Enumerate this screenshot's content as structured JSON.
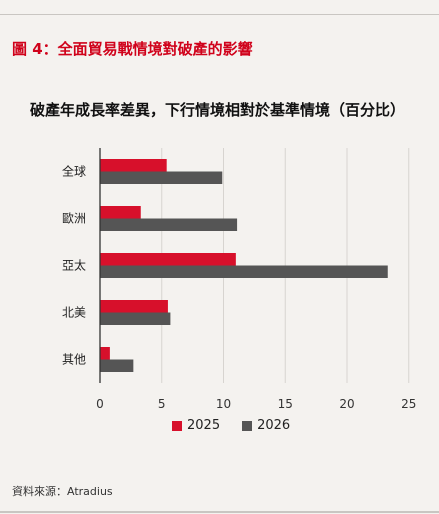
{
  "figure": {
    "title": "圖 4：全面貿易戰情境對破產的影響",
    "source": "資料來源：Atradius"
  },
  "colors": {
    "series_2025": "#d7102b",
    "series_2026": "#555555",
    "grid": "#d7d4d0",
    "axis": "#333333",
    "title_accent": "#d0021b"
  },
  "chart_data": {
    "type": "bar",
    "orientation": "horizontal",
    "title": "破產年成長率差異，下行情境相對於基準情境（百分比）",
    "categories": [
      "全球",
      "歐洲",
      "亞太",
      "北美",
      "其他"
    ],
    "series": [
      {
        "name": "2025",
        "values": [
          5.4,
          3.3,
          11.0,
          5.5,
          0.8
        ]
      },
      {
        "name": "2026",
        "values": [
          9.9,
          11.1,
          23.3,
          5.7,
          2.7
        ]
      }
    ],
    "xlim": [
      0,
      25
    ],
    "xticks": [
      0,
      5,
      10,
      15,
      20,
      25
    ],
    "xlabel": "",
    "ylabel": "",
    "grid": true,
    "legend_position": "bottom"
  }
}
